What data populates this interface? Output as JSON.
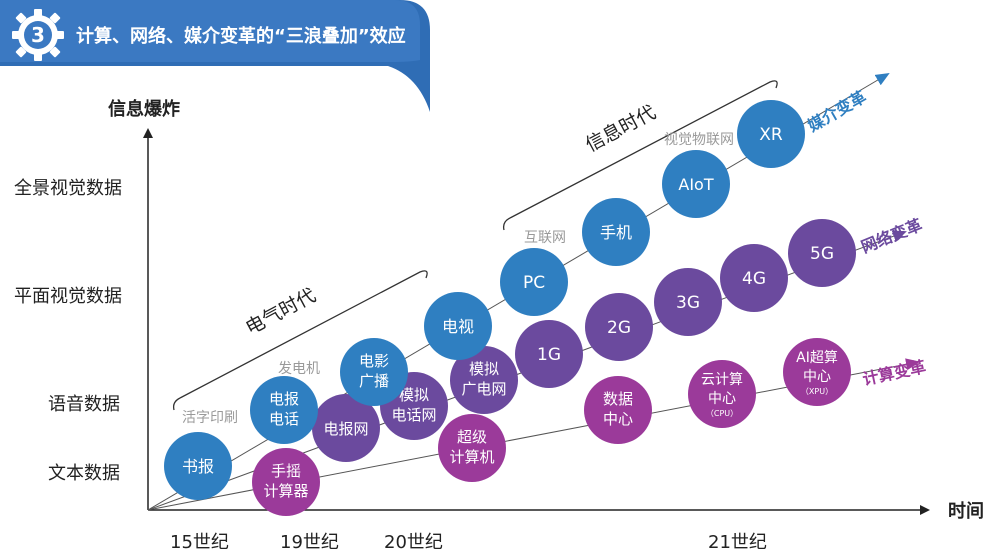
{
  "header": {
    "number": "3",
    "title": "计算、网络、媒介变革的“三浪叠加”效应"
  },
  "axes": {
    "y_title": "信息爆炸",
    "x_title": "时间",
    "y_levels": [
      "全景视觉数据",
      "平面视觉数据",
      "语音数据",
      "文本数据"
    ],
    "x_periods": [
      "15世纪",
      "19世纪",
      "20世纪",
      "21世纪"
    ]
  },
  "eras": {
    "electric": "电气时代",
    "information": "信息时代"
  },
  "annotations": {
    "printing": "活字印刷",
    "generator": "发电机",
    "internet": "互联网",
    "visual_iot": "视觉物联网"
  },
  "waves": {
    "media": "媒介变革",
    "network": "网络变革",
    "compute": "计算变革"
  },
  "nodes": {
    "shubao": "书报",
    "dianbao_dianhua": [
      "电报",
      "电话"
    ],
    "dianying_guangbo": [
      "电影",
      "广播"
    ],
    "dianshi": "电视",
    "pc": "PC",
    "shouji": "手机",
    "aiot": "AIoT",
    "xr": "XR",
    "dianbaowang": "电报网",
    "moni_dianhuawang": [
      "模拟",
      "电话网"
    ],
    "moni_guangdianwang": [
      "模拟",
      "广电网"
    ],
    "g1": "1G",
    "g2": "2G",
    "g3": "3G",
    "g4": "4G",
    "g5": "5G",
    "shouyao": [
      "手摇",
      "计算器"
    ],
    "chaoji": [
      "超级",
      "计算机"
    ],
    "shuju": [
      "数据",
      "中心"
    ],
    "yunjisuan": [
      "云计算",
      "中心"
    ],
    "yunjisuan_sub": "（CPU）",
    "ai_chaosuan": [
      "AI超算",
      "中心"
    ],
    "ai_chaosuan_sub": "（XPU）"
  },
  "colors": {
    "media_blue": "#2f7fc1",
    "network_purple": "#6b4a9e",
    "compute_magenta": "#9b3a9a",
    "banner_blue": "#2f6db5",
    "gray_text": "#9a9a9a"
  }
}
